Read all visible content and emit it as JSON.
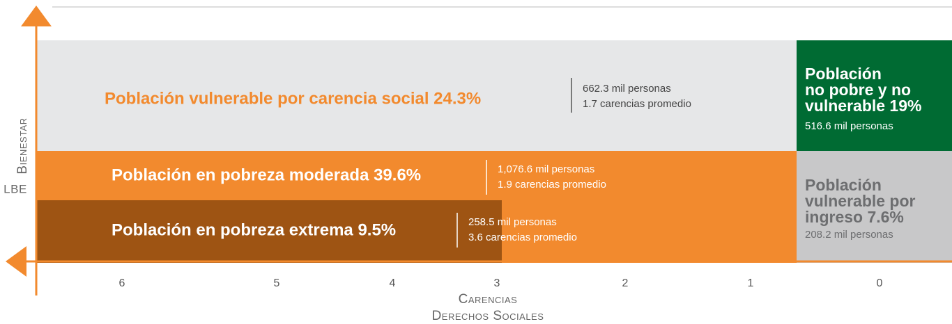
{
  "regions": {
    "vulnerable_carencia": {
      "title": "Población vulnerable por carencia social 24.3%",
      "people": "662.3 mil personas",
      "deprivations": "1.7 carencias promedio"
    },
    "pobreza_moderada": {
      "title": "Población en pobreza moderada 39.6%",
      "people": "1,076.6 mil personas",
      "deprivations": "1.9 carencias promedio"
    },
    "pobreza_extrema": {
      "title": "Población en pobreza extrema 9.5%",
      "people": "258.5 mil personas",
      "deprivations": "3.6 carencias promedio"
    },
    "no_pobre": {
      "title_lines": [
        "Población",
        "no pobre y no",
        "vulnerable 19%"
      ],
      "people": "516.6 mil personas"
    },
    "vulnerable_ingreso": {
      "title_lines": [
        "Población",
        "vulnerable por",
        "ingreso 7.6%"
      ],
      "people": "208.2 mil personas"
    }
  },
  "x_axis": {
    "ticks": [
      6,
      5,
      4,
      3,
      2,
      1,
      0
    ],
    "label_lines": [
      "Carencias",
      "Derechos Sociales"
    ]
  },
  "y_axis": {
    "label": "Bienestar",
    "threshold": "LBE"
  }
}
